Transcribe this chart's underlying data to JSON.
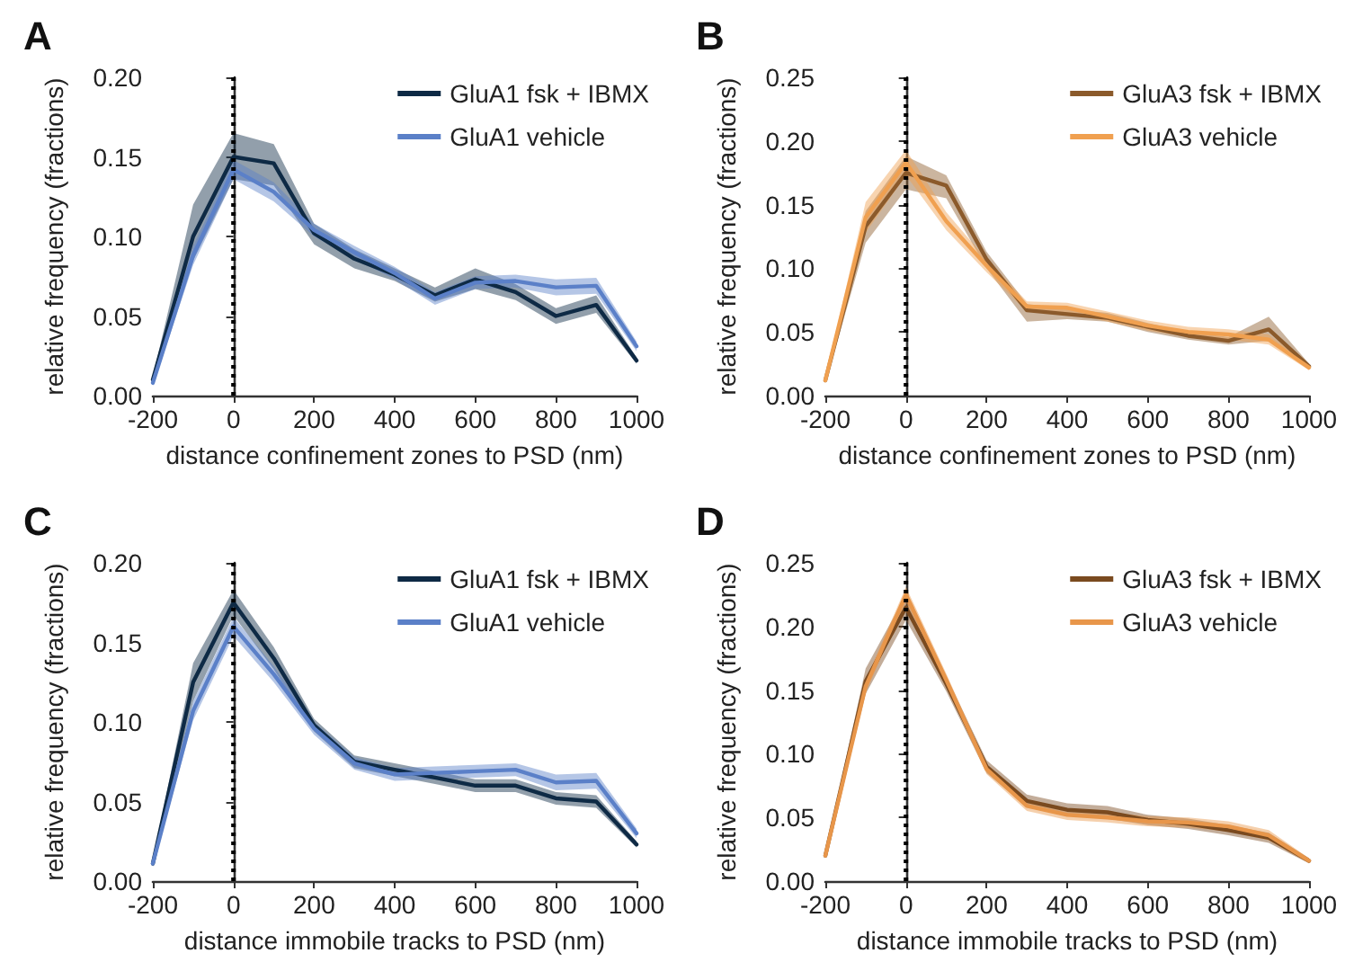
{
  "chart_data": [
    {
      "type": "line",
      "title": "A",
      "xlabel": "distance confinement zones to PSD (nm)",
      "ylabel": "relative frequency (fractions)",
      "x": [
        -200,
        -100,
        0,
        100,
        200,
        300,
        400,
        500,
        600,
        700,
        800,
        900,
        1000
      ],
      "xlim": [
        -200,
        1000
      ],
      "xticks": [
        -200,
        0,
        200,
        400,
        600,
        800,
        1000
      ],
      "ylim": [
        0,
        0.2
      ],
      "yticks": [
        {
          "value": 0,
          "label": "0.00"
        },
        {
          "value": 0.05,
          "label": "0.05"
        },
        {
          "value": 0.1,
          "label": "0.10"
        },
        {
          "value": 0.15,
          "label": "0.15"
        },
        {
          "value": 0.2,
          "label": "0.20"
        }
      ],
      "legend": "top right",
      "grid": false,
      "marker": "none",
      "line_style": "solid",
      "series": [
        {
          "name": "GluA1 fsk + IBMX",
          "color": "#0e2a45",
          "values": [
            0.01,
            0.1,
            0.15,
            0.146,
            0.102,
            0.086,
            0.076,
            0.063,
            0.073,
            0.065,
            0.05,
            0.057,
            0.022
          ],
          "lower": [
            0.008,
            0.085,
            0.136,
            0.132,
            0.095,
            0.08,
            0.072,
            0.059,
            0.067,
            0.06,
            0.045,
            0.052,
            0.02
          ],
          "upper": [
            0.012,
            0.12,
            0.165,
            0.158,
            0.108,
            0.092,
            0.08,
            0.068,
            0.08,
            0.07,
            0.055,
            0.063,
            0.024
          ]
        },
        {
          "name": "GluA1 vehicle",
          "color": "#5b80c8",
          "values": [
            0.008,
            0.088,
            0.142,
            0.128,
            0.104,
            0.09,
            0.077,
            0.061,
            0.071,
            0.072,
            0.068,
            0.069,
            0.031
          ],
          "lower": [
            0.006,
            0.082,
            0.136,
            0.122,
            0.1,
            0.086,
            0.073,
            0.057,
            0.067,
            0.068,
            0.063,
            0.064,
            0.028
          ],
          "upper": [
            0.01,
            0.094,
            0.148,
            0.134,
            0.108,
            0.094,
            0.081,
            0.065,
            0.075,
            0.076,
            0.073,
            0.074,
            0.034
          ]
        }
      ],
      "ref_lines": [
        {
          "axis": "x",
          "value": 0,
          "color": "#000000",
          "line_style": "dotted"
        }
      ]
    },
    {
      "type": "line",
      "title": "B",
      "xlabel": "distance confinement zones to PSD (nm)",
      "ylabel": "relative frequency (fractions)",
      "x": [
        -200,
        -100,
        0,
        100,
        200,
        300,
        400,
        500,
        600,
        700,
        800,
        900,
        1000
      ],
      "xlim": [
        -200,
        1000
      ],
      "xticks": [
        -200,
        0,
        200,
        400,
        600,
        800,
        1000
      ],
      "ylim": [
        0,
        0.25
      ],
      "yticks": [
        {
          "value": 0,
          "label": "0.00"
        },
        {
          "value": 0.05,
          "label": "0.05"
        },
        {
          "value": 0.1,
          "label": "0.10"
        },
        {
          "value": 0.15,
          "label": "0.15"
        },
        {
          "value": 0.2,
          "label": "0.20"
        },
        {
          "value": 0.25,
          "label": "0.25"
        }
      ],
      "legend": "top right",
      "grid": false,
      "marker": "none",
      "line_style": "solid",
      "series": [
        {
          "name": "GluA3 fsk + IBMX",
          "color": "#8b5a2b",
          "values": [
            0.012,
            0.133,
            0.175,
            0.165,
            0.107,
            0.067,
            0.064,
            0.061,
            0.054,
            0.047,
            0.043,
            0.052,
            0.023
          ],
          "lower": [
            0.01,
            0.12,
            0.162,
            0.155,
            0.1,
            0.058,
            0.06,
            0.058,
            0.05,
            0.044,
            0.04,
            0.043,
            0.021
          ],
          "upper": [
            0.014,
            0.145,
            0.188,
            0.173,
            0.113,
            0.072,
            0.068,
            0.065,
            0.057,
            0.05,
            0.046,
            0.062,
            0.025
          ]
        },
        {
          "name": "GluA3 vehicle",
          "color": "#f0a050",
          "values": [
            0.012,
            0.14,
            0.183,
            0.137,
            0.102,
            0.07,
            0.069,
            0.062,
            0.055,
            0.05,
            0.048,
            0.044,
            0.022
          ],
          "lower": [
            0.01,
            0.128,
            0.173,
            0.13,
            0.097,
            0.066,
            0.065,
            0.058,
            0.051,
            0.046,
            0.044,
            0.04,
            0.02
          ],
          "upper": [
            0.014,
            0.152,
            0.193,
            0.144,
            0.107,
            0.074,
            0.073,
            0.066,
            0.059,
            0.054,
            0.052,
            0.048,
            0.024
          ]
        }
      ],
      "ref_lines": [
        {
          "axis": "x",
          "value": 0,
          "color": "#000000",
          "line_style": "dotted"
        }
      ]
    },
    {
      "type": "line",
      "title": "C",
      "xlabel": "distance immobile tracks to PSD (nm)",
      "ylabel": "relative frequency (fractions)",
      "x": [
        -200,
        -100,
        0,
        100,
        200,
        300,
        400,
        500,
        600,
        700,
        800,
        900,
        1000
      ],
      "xlim": [
        -200,
        1000
      ],
      "xticks": [
        -200,
        0,
        200,
        400,
        600,
        800,
        1000
      ],
      "ylim": [
        0,
        0.2
      ],
      "yticks": [
        {
          "value": 0,
          "label": "0.00"
        },
        {
          "value": 0.05,
          "label": "0.05"
        },
        {
          "value": 0.1,
          "label": "0.10"
        },
        {
          "value": 0.15,
          "label": "0.15"
        },
        {
          "value": 0.2,
          "label": "0.20"
        }
      ],
      "legend": "top right",
      "grid": false,
      "marker": "none",
      "line_style": "solid",
      "series": [
        {
          "name": "GluA1 fsk + IBMX",
          "color": "#0e2a45",
          "values": [
            0.011,
            0.125,
            0.175,
            0.14,
            0.098,
            0.075,
            0.07,
            0.065,
            0.06,
            0.06,
            0.052,
            0.05,
            0.023
          ],
          "lower": [
            0.009,
            0.113,
            0.167,
            0.133,
            0.094,
            0.071,
            0.066,
            0.061,
            0.056,
            0.056,
            0.048,
            0.046,
            0.021
          ],
          "upper": [
            0.013,
            0.137,
            0.183,
            0.147,
            0.102,
            0.079,
            0.074,
            0.069,
            0.064,
            0.064,
            0.056,
            0.054,
            0.025
          ]
        },
        {
          "name": "GluA1 vehicle",
          "color": "#5b80c8",
          "values": [
            0.011,
            0.107,
            0.16,
            0.13,
            0.096,
            0.074,
            0.067,
            0.068,
            0.069,
            0.07,
            0.062,
            0.063,
            0.03
          ],
          "lower": [
            0.009,
            0.101,
            0.154,
            0.125,
            0.092,
            0.07,
            0.063,
            0.064,
            0.065,
            0.066,
            0.057,
            0.058,
            0.027
          ],
          "upper": [
            0.013,
            0.113,
            0.166,
            0.135,
            0.1,
            0.078,
            0.071,
            0.072,
            0.073,
            0.074,
            0.067,
            0.068,
            0.033
          ]
        }
      ],
      "ref_lines": [
        {
          "axis": "x",
          "value": 0,
          "color": "#000000",
          "line_style": "dotted"
        }
      ]
    },
    {
      "type": "line",
      "title": "D",
      "xlabel": "distance immobile tracks to PSD (nm)",
      "ylabel": "relative frequency (fractions)",
      "x": [
        -200,
        -100,
        0,
        100,
        200,
        300,
        400,
        500,
        600,
        700,
        800,
        900,
        1000
      ],
      "xlim": [
        -200,
        1000
      ],
      "xticks": [
        -200,
        0,
        200,
        400,
        600,
        800,
        1000
      ],
      "ylim": [
        0,
        0.25
      ],
      "yticks": [
        {
          "value": 0,
          "label": "0.00"
        },
        {
          "value": 0.05,
          "label": "0.05"
        },
        {
          "value": 0.1,
          "label": "0.10"
        },
        {
          "value": 0.15,
          "label": "0.15"
        },
        {
          "value": 0.2,
          "label": "0.20"
        },
        {
          "value": 0.25,
          "label": "0.25"
        }
      ],
      "legend": "top right",
      "grid": false,
      "marker": "none",
      "line_style": "solid",
      "series": [
        {
          "name": "GluA3 fsk + IBMX",
          "color": "#7a4a1f",
          "values": [
            0.02,
            0.157,
            0.215,
            0.155,
            0.09,
            0.063,
            0.056,
            0.054,
            0.048,
            0.045,
            0.04,
            0.034,
            0.016
          ],
          "lower": [
            0.018,
            0.147,
            0.205,
            0.149,
            0.085,
            0.058,
            0.051,
            0.049,
            0.044,
            0.041,
            0.036,
            0.03,
            0.014
          ],
          "upper": [
            0.022,
            0.167,
            0.225,
            0.161,
            0.095,
            0.068,
            0.061,
            0.059,
            0.052,
            0.049,
            0.044,
            0.038,
            0.018
          ]
        },
        {
          "name": "GluA3 vehicle",
          "color": "#e8964a",
          "values": [
            0.02,
            0.153,
            0.225,
            0.158,
            0.088,
            0.059,
            0.052,
            0.05,
            0.047,
            0.046,
            0.043,
            0.036,
            0.016
          ],
          "lower": [
            0.018,
            0.148,
            0.219,
            0.153,
            0.084,
            0.055,
            0.048,
            0.046,
            0.043,
            0.042,
            0.039,
            0.032,
            0.014
          ],
          "upper": [
            0.022,
            0.158,
            0.231,
            0.163,
            0.092,
            0.063,
            0.056,
            0.054,
            0.051,
            0.05,
            0.047,
            0.04,
            0.018
          ]
        }
      ],
      "ref_lines": [
        {
          "axis": "x",
          "value": 0,
          "color": "#000000",
          "line_style": "dotted"
        }
      ]
    }
  ]
}
